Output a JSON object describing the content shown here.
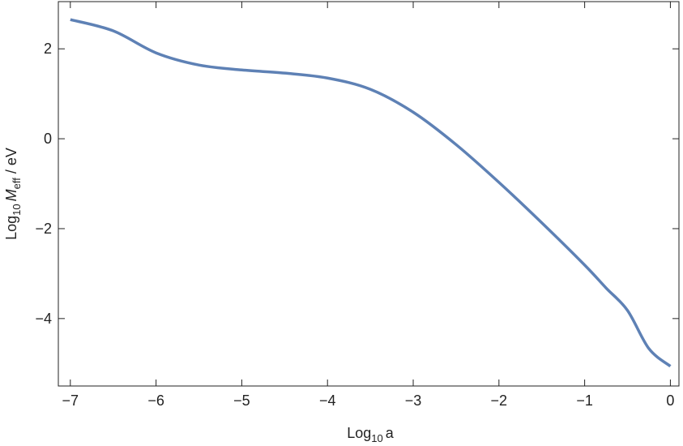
{
  "chart_data": {
    "type": "line",
    "xlabel": [
      "Log",
      "10",
      "a"
    ],
    "ylabel": [
      "Log",
      "10",
      "M",
      "eff",
      " / eV"
    ],
    "x": [
      -7,
      -6.5,
      -6,
      -5.5,
      -5,
      -4.5,
      -4,
      -3.5,
      -3,
      -2.5,
      -2,
      -1.5,
      -1,
      -0.75,
      -0.5,
      -0.25,
      0
    ],
    "series": [
      {
        "color": "#5e81b5",
        "values": [
          2.65,
          2.4,
          1.91,
          1.64,
          1.53,
          1.46,
          1.35,
          1.1,
          0.59,
          -0.13,
          -0.97,
          -1.87,
          -2.81,
          -3.32,
          -3.82,
          -4.67,
          -5.06
        ]
      }
    ],
    "xlim": [
      -7.14,
      0.1
    ],
    "ylim": [
      -5.5,
      3.05
    ],
    "xticks": [
      {
        "value": -7,
        "label": "−7"
      },
      {
        "value": -6,
        "label": "−6"
      },
      {
        "value": -5,
        "label": "−5"
      },
      {
        "value": -4,
        "label": "−4"
      },
      {
        "value": -3,
        "label": "−3"
      },
      {
        "value": -2,
        "label": "−2"
      },
      {
        "value": -1,
        "label": "−1"
      },
      0
    ],
    "yticks": [
      {
        "value": -4,
        "label": "−4"
      },
      {
        "value": -2,
        "label": "−2"
      },
      0,
      2
    ]
  }
}
